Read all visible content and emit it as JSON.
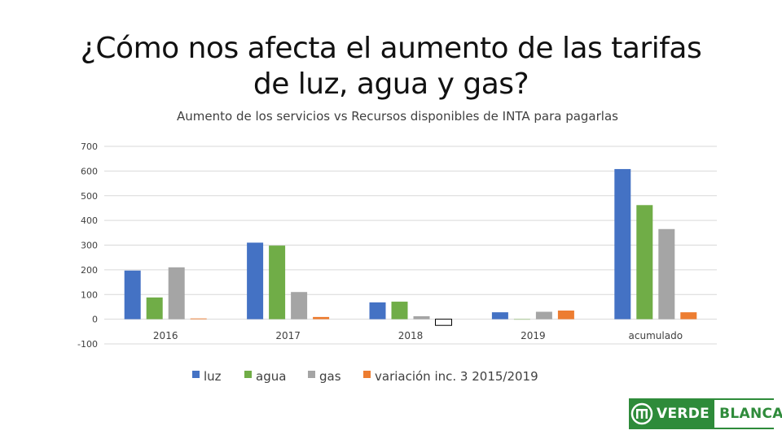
{
  "slide": {
    "title_line1": "¿Cómo nos afecta el aumento de las tarifas",
    "title_line2": "de luz, agua y gas?"
  },
  "logo": {
    "emblem_icon": "inta-emblem-icon",
    "text_left": "VERDE",
    "text_right": "BLANCA",
    "color": "#2e8b3a"
  },
  "chart_data": {
    "type": "bar",
    "title": "Aumento de los servicios vs Recursos disponibles de INTA para pagarlas",
    "xlabel": "",
    "ylabel": "",
    "categories": [
      "2016",
      "2017",
      "2018",
      "2019",
      "acumulado"
    ],
    "ylim": [
      -100,
      700
    ],
    "yticks": [
      -100,
      0,
      100,
      200,
      300,
      400,
      500,
      600,
      700
    ],
    "grid": true,
    "legend_position": "bottom",
    "series": [
      {
        "name": "luz",
        "color": "#4472c4",
        "values": [
          197,
          310,
          68,
          28,
          608
        ]
      },
      {
        "name": "agua",
        "color": "#70ad47",
        "values": [
          88,
          298,
          71,
          0,
          462
        ]
      },
      {
        "name": "gas",
        "color": "#a5a5a5",
        "values": [
          210,
          110,
          12,
          30,
          365
        ]
      },
      {
        "name": "variación inc. 3 2015/2019",
        "color": "#ed7d31",
        "values": [
          3,
          9,
          -25,
          35,
          28
        ]
      }
    ]
  }
}
